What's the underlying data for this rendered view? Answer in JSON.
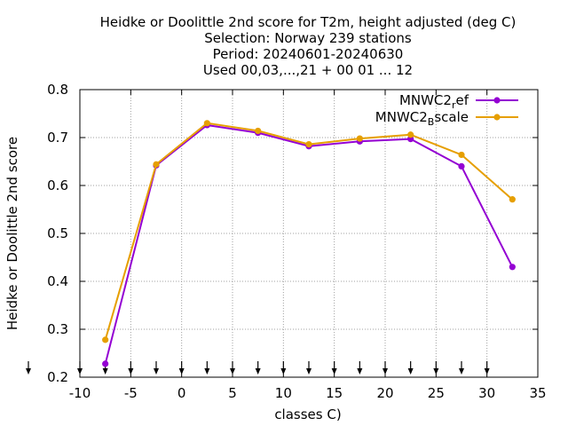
{
  "chart_data": {
    "type": "line",
    "title": [
      "Heidke or Doolittle 2nd score  for T2m, height adjusted (deg C)",
      "Selection: Norway    239 stations",
      "Period: 20240601-20240630",
      "Used 00,03,...,21 + 00 01 ... 12"
    ],
    "xlabel": "classes C)",
    "ylabel": "Heidke or Doolittle 2nd score",
    "xlim": [
      -10,
      35
    ],
    "ylim": [
      0.2,
      0.8
    ],
    "xticks": [
      -10,
      -5,
      0,
      5,
      10,
      15,
      20,
      25,
      30,
      35
    ],
    "xtick_labels": [
      "-10",
      "-5",
      "0",
      "5",
      "10",
      "15",
      "20",
      "25",
      "30",
      "35"
    ],
    "yticks": [
      0.2,
      0.3,
      0.4,
      0.5,
      0.6,
      0.7,
      0.8
    ],
    "ytick_labels": [
      "0.2",
      "0.3",
      "0.4",
      "0.5",
      "0.6",
      "0.7",
      "0.8"
    ],
    "grid": true,
    "legend_position": "top-right",
    "bottom_arrow_x": [
      -10,
      -7.5,
      -5,
      -2.5,
      0,
      2.5,
      5,
      7.5,
      10,
      12.5,
      15,
      17.5,
      20,
      22.5,
      25,
      27.5,
      30
    ],
    "series": [
      {
        "name": "MNWC2_ref",
        "legend_base": "MNWC2",
        "legend_sub": "r",
        "legend_tail": "ef",
        "color": "#9400d3",
        "x": [
          -7.5,
          -2.5,
          2.5,
          7.5,
          12.5,
          17.5,
          22.5,
          27.5,
          32.5
        ],
        "y": [
          0.228,
          0.642,
          0.726,
          0.71,
          0.682,
          0.692,
          0.697,
          0.64,
          0.43
        ]
      },
      {
        "name": "MNWC2_Bscale",
        "legend_base": "MNWC2",
        "legend_sub": "B",
        "legend_tail": "scale",
        "color": "#e69f00",
        "x": [
          -7.5,
          -2.5,
          2.5,
          7.5,
          12.5,
          17.5,
          22.5,
          27.5,
          32.5
        ],
        "y": [
          0.278,
          0.644,
          0.73,
          0.714,
          0.686,
          0.698,
          0.706,
          0.664,
          0.571
        ]
      }
    ]
  }
}
